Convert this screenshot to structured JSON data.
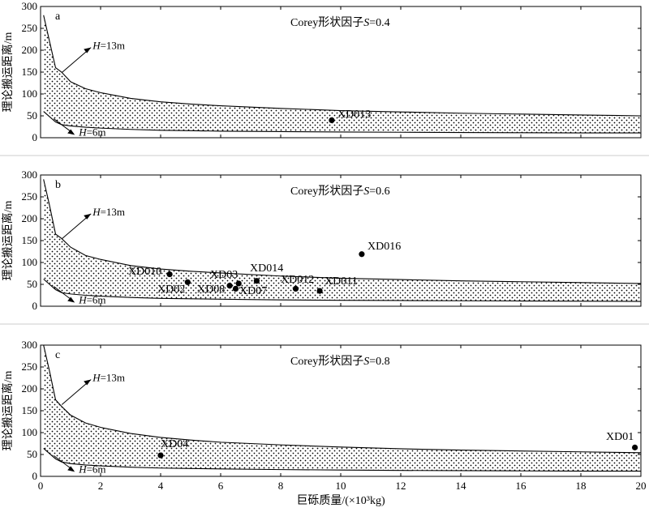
{
  "chart_data": [
    {
      "type": "area",
      "panel_label": "a",
      "title_prefix": "Corey形状因子",
      "title_var": "S",
      "title_suffix": "=0.4",
      "ylabel": "理论搬运距离/m",
      "xlim": [
        0,
        20
      ],
      "ylim": [
        0,
        300
      ],
      "xticks": [
        0,
        2,
        4,
        6,
        8,
        10,
        12,
        14,
        16,
        18,
        20
      ],
      "yticks": [
        0,
        50,
        100,
        150,
        200,
        250,
        300
      ],
      "upper_curve": {
        "var": "H",
        "value_label": "=13m",
        "x": [
          0.1,
          0.3,
          0.5,
          0.7,
          1,
          1.5,
          2,
          3,
          4,
          5,
          6,
          8,
          10,
          12,
          14,
          16,
          18,
          20
        ],
        "y": [
          280,
          220,
          160,
          150,
          128,
          112,
          103,
          90,
          82,
          77,
          73,
          67,
          62,
          59,
          56,
          54,
          52,
          50
        ]
      },
      "lower_curve": {
        "var": "H",
        "value_label": "=6m",
        "x": [
          0.1,
          0.3,
          0.5,
          0.7,
          1,
          1.5,
          2,
          3,
          4,
          5,
          6,
          8,
          10,
          12,
          14,
          16,
          18,
          20
        ],
        "y": [
          60,
          48,
          36,
          30,
          27,
          24,
          22,
          19,
          17,
          16,
          15,
          14,
          13,
          12.5,
          12,
          11.5,
          11,
          11
        ]
      },
      "points": [
        {
          "name": "XD013",
          "x": 9.7,
          "y": 40
        }
      ]
    },
    {
      "type": "area",
      "panel_label": "b",
      "title_prefix": "Corey形状因子",
      "title_var": "S",
      "title_suffix": "=0.6",
      "ylabel": "理论搬运距离/m",
      "xlim": [
        0,
        20
      ],
      "ylim": [
        0,
        300
      ],
      "xticks": [
        0,
        2,
        4,
        6,
        8,
        10,
        12,
        14,
        16,
        18,
        20
      ],
      "yticks": [
        0,
        50,
        100,
        150,
        200,
        250,
        300
      ],
      "upper_curve": {
        "var": "H",
        "value_label": "=13m",
        "x": [
          0.1,
          0.3,
          0.5,
          0.7,
          1,
          1.5,
          2,
          3,
          4,
          5,
          6,
          8,
          10,
          12,
          14,
          16,
          18,
          20
        ],
        "y": [
          290,
          230,
          165,
          155,
          135,
          116,
          107,
          93,
          85,
          80,
          76,
          69,
          64,
          61,
          58,
          56,
          54,
          52
        ]
      },
      "lower_curve": {
        "var": "H",
        "value_label": "=6m",
        "x": [
          0.1,
          0.3,
          0.5,
          0.7,
          1,
          1.5,
          2,
          3,
          4,
          5,
          6,
          8,
          10,
          12,
          14,
          16,
          18,
          20
        ],
        "y": [
          62,
          50,
          38,
          31,
          28,
          25,
          23,
          20,
          18,
          17,
          16,
          14.5,
          13.5,
          13,
          12.5,
          12,
          11.5,
          11
        ]
      },
      "points": [
        {
          "name": "XD010",
          "x": 4.3,
          "y": 73
        },
        {
          "name": "XD02",
          "x": 4.9,
          "y": 55
        },
        {
          "name": "XD08",
          "x": 6.3,
          "y": 47
        },
        {
          "name": "XD03",
          "x": 6.6,
          "y": 52
        },
        {
          "name": "XD014",
          "x": 7.2,
          "y": 58
        },
        {
          "name": "XD07",
          "x": 6.5,
          "y": 40
        },
        {
          "name": "XD012",
          "x": 8.5,
          "y": 40
        },
        {
          "name": "XD011",
          "x": 9.3,
          "y": 35
        },
        {
          "name": "XD016",
          "x": 10.7,
          "y": 119
        }
      ]
    },
    {
      "type": "area",
      "panel_label": "c",
      "title_prefix": "Corey形状因子",
      "title_var": "S",
      "title_suffix": "=0.8",
      "ylabel": "理论搬运距离/m",
      "xlabel": "巨砾质量/(×10³kg)",
      "xlim": [
        0,
        20
      ],
      "ylim": [
        0,
        300
      ],
      "xticks": [
        0,
        2,
        4,
        6,
        8,
        10,
        12,
        14,
        16,
        18,
        20
      ],
      "yticks": [
        0,
        50,
        100,
        150,
        200,
        250,
        300
      ],
      "upper_curve": {
        "var": "H",
        "value_label": "=13m",
        "x": [
          0.1,
          0.3,
          0.5,
          0.7,
          1,
          1.5,
          2,
          3,
          4,
          5,
          6,
          8,
          10,
          12,
          14,
          16,
          18,
          20
        ],
        "y": [
          300,
          240,
          175,
          160,
          140,
          122,
          112,
          98,
          89,
          83,
          78,
          72,
          67,
          63,
          60,
          58,
          56,
          54
        ]
      },
      "lower_curve": {
        "var": "H",
        "value_label": "=6m",
        "x": [
          0.1,
          0.3,
          0.5,
          0.7,
          1,
          1.5,
          2,
          3,
          4,
          5,
          6,
          8,
          10,
          12,
          14,
          16,
          18,
          20
        ],
        "y": [
          64,
          52,
          40,
          33,
          29,
          26,
          24,
          21,
          19,
          18,
          17,
          15.5,
          14.5,
          13.5,
          13,
          12.5,
          12,
          12
        ]
      },
      "points": [
        {
          "name": "XD04",
          "x": 4.0,
          "y": 48
        },
        {
          "name": "XD01",
          "x": 19.8,
          "y": 66
        }
      ]
    }
  ]
}
